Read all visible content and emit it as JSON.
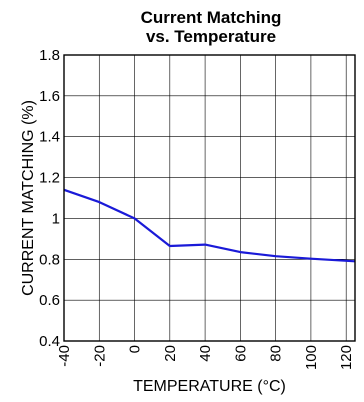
{
  "chart_data": {
    "type": "line",
    "title": "Current Matching",
    "subtitle": "vs. Temperature",
    "xlabel": "TEMPERATURE (°C)",
    "ylabel": "CURRENT MATCHING (%)",
    "xlim": [
      -40,
      125
    ],
    "ylim": [
      0.4,
      1.8
    ],
    "xticks": [
      -40,
      -20,
      0,
      20,
      40,
      60,
      80,
      100,
      120
    ],
    "xtick_labels": [
      "-40",
      "-20",
      "0",
      "20",
      "40",
      "60",
      "80",
      "100",
      "120"
    ],
    "yticks": [
      0.4,
      0.6,
      0.8,
      1.0,
      1.2,
      1.4,
      1.6,
      1.8
    ],
    "ytick_labels": [
      "0.4",
      "0.6",
      "0.8",
      "1",
      "1.2",
      "1.4",
      "1.6",
      "1.8"
    ],
    "grid": true,
    "line_color": "#1a1ad8",
    "series": [
      {
        "x": [
          -40,
          -20,
          0,
          20,
          40,
          60,
          80,
          100,
          125
        ],
        "y": [
          1.14,
          1.08,
          1.0,
          0.865,
          0.872,
          0.835,
          0.815,
          0.803,
          0.79
        ]
      }
    ]
  }
}
